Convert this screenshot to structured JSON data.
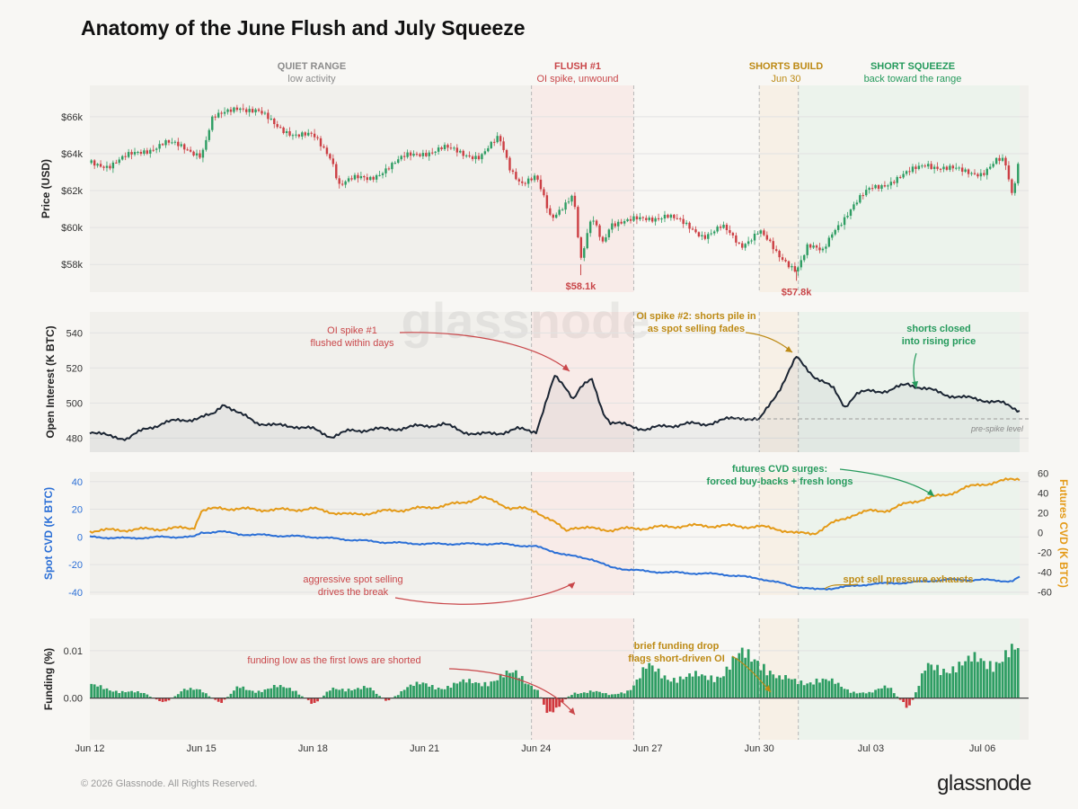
{
  "title": "Anatomy of the June Flush and July Squeeze",
  "footer": "© 2026 Glassnode. All Rights Reserved.",
  "brand": "glassnode",
  "watermark": "glassnode",
  "colors": {
    "background": "#f8f7f4",
    "quiet_fill": "#f1f0ec",
    "flush_fill": "#f8ebe8",
    "build_fill": "#f7f0e6",
    "squeeze_fill": "#ecf3ec",
    "candle_up": "#2e9d63",
    "candle_down": "#cc3f44",
    "oi_line": "#1b2533",
    "spot_cvd": "#2b6fd6",
    "futures_cvd": "#e49a17",
    "funding_pos": "#2e9d63",
    "funding_neg": "#d0373d",
    "red_text": "#c9474a",
    "gold_text": "#bd8a15",
    "green_text": "#259a5c",
    "grey_text": "#8c8c8c"
  },
  "chart_data": {
    "type": "line",
    "x_range": [
      "Jun 12",
      "Jul 06"
    ],
    "x_ticks": [
      "Jun 12",
      "Jun 15",
      "Jun 18",
      "Jun 21",
      "Jun 24",
      "Jun 27",
      "Jun 30",
      "Jul 03",
      "Jul 06"
    ],
    "regions": [
      {
        "name": "QUIET RANGE",
        "sub": "low activity",
        "start": 0,
        "end": 11.875,
        "color": "grey"
      },
      {
        "name": "FLUSH #1",
        "sub": "OI spike, unwound",
        "start": 11.875,
        "end": 14.625,
        "color": "red"
      },
      {
        "name": "SHORTS BUILD",
        "sub": "Jun 30",
        "start": 18.0,
        "end": 19.05,
        "color": "gold"
      },
      {
        "name": "SHORT SQUEEZE",
        "sub": "back toward the range",
        "start": 19.05,
        "end": 25.0,
        "color": "green"
      }
    ],
    "panels": {
      "price": {
        "type": "candlestick",
        "ylabel": "Price (USD)",
        "ylim": [
          56500,
          67700
        ],
        "yticks": [
          58000,
          60000,
          62000,
          64000,
          66000
        ],
        "ytick_labels": [
          "$58k",
          "$60k",
          "$62k",
          "$64k",
          "$66k"
        ],
        "anchors_x": [
          0,
          0.5,
          1,
          1.5,
          2,
          2.5,
          3,
          3.3,
          3.5,
          4,
          4.5,
          5,
          5.5,
          6,
          6.5,
          6.7,
          7,
          7.5,
          8,
          8.5,
          9,
          9.5,
          10,
          10.5,
          11,
          11.3,
          11.6,
          12,
          12.4,
          12.7,
          13,
          13.2,
          13.5,
          13.8,
          14,
          14.5,
          15,
          15.5,
          16,
          16.5,
          17,
          17.5,
          18,
          18.5,
          19,
          19.3,
          19.7,
          20,
          20.5,
          21,
          21.5,
          22,
          22.5,
          23,
          23.5,
          24,
          24.4,
          24.6,
          24.8,
          25
        ],
        "anchors_y": [
          63500,
          63400,
          63800,
          64200,
          64600,
          64300,
          64000,
          65900,
          66000,
          66600,
          66300,
          65500,
          65100,
          64900,
          63800,
          62400,
          62600,
          62600,
          63300,
          63800,
          64100,
          64300,
          64000,
          63900,
          64800,
          63200,
          62500,
          62700,
          60400,
          61200,
          61900,
          58100,
          60500,
          59200,
          60300,
          60300,
          60500,
          60700,
          60100,
          59600,
          60000,
          59000,
          59900,
          58400,
          57800,
          59000,
          58600,
          59900,
          61100,
          62100,
          62500,
          62900,
          63500,
          63200,
          63000,
          63000,
          63600,
          63500,
          61700,
          63900
        ],
        "candles_count": 300,
        "annotations": [
          {
            "text": "$58.1k",
            "x": 13.2,
            "y": 58100,
            "color": "red"
          },
          {
            "text": "$57.8k",
            "x": 19.0,
            "y": 57800,
            "color": "red"
          }
        ]
      },
      "open_interest": {
        "type": "line",
        "ylabel": "Open Interest (K BTC)",
        "ylim": [
          472,
          552
        ],
        "yticks": [
          480,
          500,
          520,
          540
        ],
        "anchors_x": [
          0,
          0.5,
          1,
          1.5,
          2,
          2.5,
          3,
          3.3,
          3.6,
          4,
          4.5,
          5,
          5.5,
          6,
          6.5,
          7,
          7.5,
          8,
          8.5,
          9,
          9.5,
          10,
          10.5,
          11,
          11.5,
          12,
          12.5,
          12.8,
          13,
          13.2,
          13.5,
          13.8,
          14,
          14.5,
          15,
          15.5,
          16,
          16.5,
          17,
          17.5,
          18,
          18.3,
          18.6,
          19,
          19.5,
          20,
          20.3,
          20.6,
          21,
          21.5,
          22,
          22.5,
          23,
          23.5,
          24,
          24.5,
          25
        ],
        "anchors_y": [
          484,
          481,
          480,
          485,
          489,
          490,
          492,
          493,
          500,
          494,
          489,
          487,
          487,
          485,
          481,
          484,
          485,
          485,
          486,
          487,
          488,
          484,
          482,
          483,
          485,
          484,
          515,
          509,
          503,
          509,
          513,
          495,
          489,
          487,
          485,
          487,
          488,
          488,
          490,
          492,
          490,
          500,
          510,
          526,
          515,
          508,
          498,
          505,
          507,
          507,
          511,
          508,
          505,
          503,
          502,
          500,
          496
        ],
        "reference_line": {
          "value": 491,
          "label": "pre-spike level"
        },
        "annotations": [
          {
            "text": "OI spike #1\nflushed within days",
            "color": "red"
          },
          {
            "text": "OI spike #2: shorts pile in\nas spot selling fades",
            "color": "gold"
          },
          {
            "text": "shorts closed\ninto rising price",
            "color": "green"
          }
        ]
      },
      "cvd": {
        "type": "line",
        "ylabel_left": "Spot CVD (K BTC)",
        "ylabel_right": "Futures CVD (K BTC)",
        "ylim_left": [
          -42,
          47
        ],
        "yticks_left": [
          -40,
          -20,
          0,
          20,
          40
        ],
        "ylim_right": [
          -63,
          61.5
        ],
        "yticks_right": [
          -60,
          -40,
          -20,
          0,
          20,
          40,
          60
        ],
        "series": [
          {
            "name": "Spot CVD",
            "axis": "left",
            "anchors_x": [
              0,
              1,
              2,
              2.8,
              3,
              3.5,
              4,
              5,
              6,
              7,
              8,
              9,
              10,
              11,
              11.5,
              12,
              12.4,
              12.8,
              13,
              13.5,
              14,
              15,
              16,
              17,
              18,
              18.5,
              19,
              19.5,
              20,
              21,
              22,
              23,
              24,
              24.8,
              25
            ],
            "anchors_y": [
              0,
              -1,
              0,
              0,
              3,
              4,
              2,
              1,
              0,
              -2,
              -4,
              -5,
              -5,
              -5,
              -6,
              -7,
              -10,
              -13,
              -14,
              -16,
              -22,
              -25,
              -26,
              -27,
              -30,
              -33,
              -36,
              -38,
              -37,
              -34,
              -33,
              -31,
              -31,
              -32,
              -29
            ]
          },
          {
            "name": "Futures CVD",
            "axis": "right",
            "anchors_x": [
              0,
              1,
              2,
              2.8,
              3,
              3.5,
              4,
              5,
              6,
              7,
              8,
              9,
              10,
              10.5,
              11,
              11.3,
              11.7,
              12,
              12.5,
              12.8,
              13,
              13.5,
              14,
              15,
              16,
              17,
              18,
              18.5,
              19,
              19.5,
              20,
              20.5,
              21,
              21.5,
              22,
              22.5,
              23,
              23.5,
              24,
              24.5,
              25
            ],
            "anchors_y": [
              2,
              3,
              4,
              5,
              22,
              25,
              24,
              23,
              24,
              18,
              22,
              25,
              30,
              36,
              30,
              25,
              24,
              22,
              10,
              2,
              6,
              4,
              3,
              5,
              7,
              7,
              6,
              4,
              -1,
              0,
              10,
              18,
              22,
              23,
              30,
              35,
              38,
              45,
              49,
              52,
              55
            ]
          }
        ],
        "annotations": [
          {
            "text": "futures CVD surges:\nforced buy-backs + fresh longs",
            "color": "green"
          },
          {
            "text": "aggressive spot selling\ndrives the break",
            "color": "red"
          },
          {
            "text": "spot sell pressure exhausts",
            "color": "gold"
          }
        ]
      },
      "funding": {
        "type": "bar",
        "ylabel": "Funding (%)",
        "ylim": [
          -0.0088,
          0.0168
        ],
        "yticks": [
          0.0,
          0.01
        ],
        "ytick_labels": [
          "0.00",
          "0.01"
        ],
        "anchors_x": [
          0,
          0.5,
          1,
          1.5,
          2,
          2.5,
          3,
          3.5,
          4,
          4.5,
          5,
          5.5,
          6,
          6.5,
          7,
          7.5,
          8,
          8.5,
          9,
          9.5,
          10,
          10.5,
          11,
          11.5,
          12,
          12.3,
          12.6,
          13,
          13.5,
          14,
          14.5,
          15,
          15.5,
          16,
          16.5,
          17,
          17.5,
          18,
          18.5,
          19,
          19.5,
          20,
          20.5,
          21,
          21.5,
          22,
          22.5,
          23,
          23.5,
          24,
          24.5,
          25
        ],
        "anchors_y": [
          0.0025,
          0.0018,
          0.0015,
          0.0008,
          -0.0012,
          0.0015,
          0.0018,
          -0.0012,
          0.0022,
          0.0016,
          0.0022,
          0.0018,
          -0.0014,
          0.0018,
          0.0022,
          0.002,
          -0.0008,
          0.0022,
          0.0028,
          0.0024,
          0.003,
          0.0034,
          0.0042,
          0.0048,
          0.0025,
          -0.003,
          -0.0016,
          0.0012,
          0.0014,
          0.0006,
          0.0018,
          0.006,
          0.005,
          0.004,
          0.0045,
          0.0054,
          0.0082,
          0.009,
          0.0038,
          0.0035,
          0.004,
          0.003,
          0.0015,
          0.001,
          0.0025,
          -0.0025,
          0.006,
          0.007,
          0.0065,
          0.0082,
          0.0085,
          0.009
        ],
        "annotations": [
          {
            "text": "funding low as the first lows are shorted",
            "color": "red"
          },
          {
            "text": "brief funding drop\nflags short-driven OI",
            "color": "gold"
          }
        ]
      }
    }
  }
}
